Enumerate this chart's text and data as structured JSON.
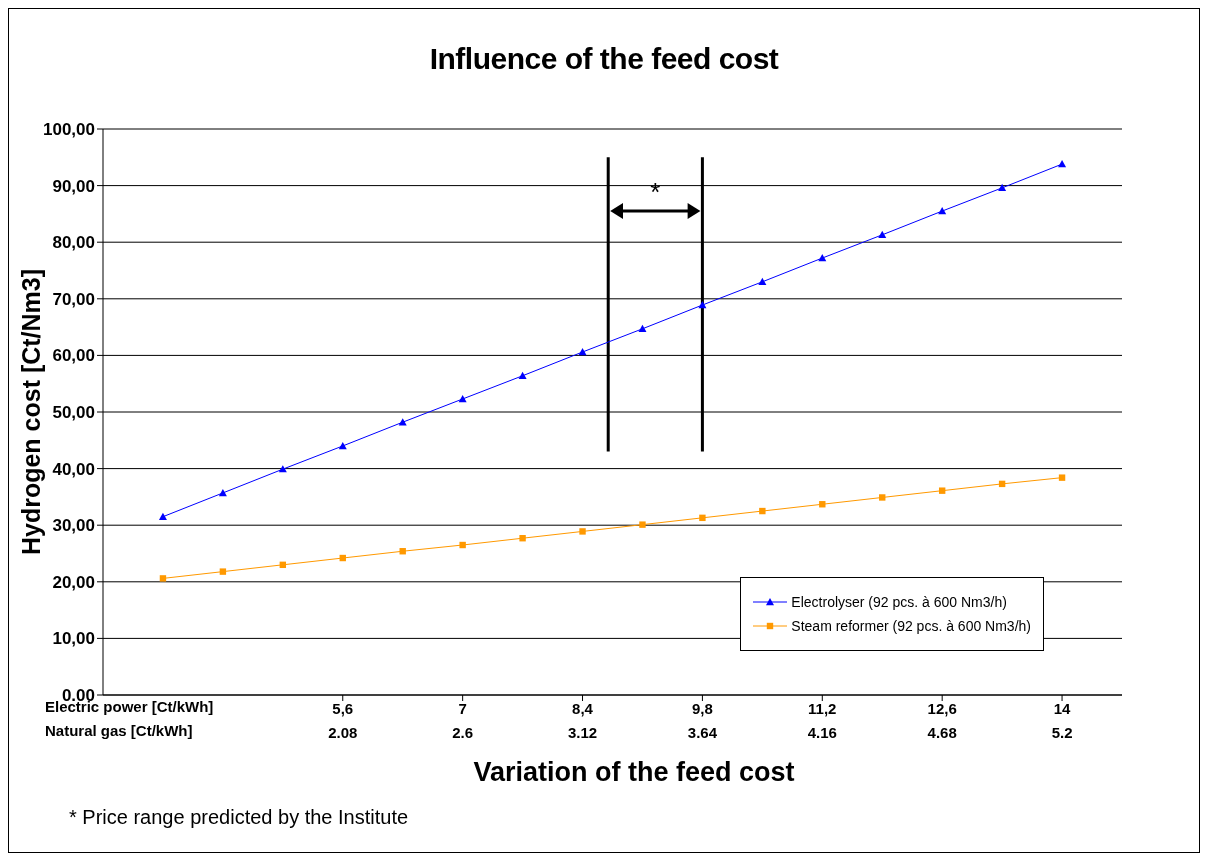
{
  "chart_data": {
    "type": "line",
    "title": "Influence of the feed cost",
    "ylabel": "Hydrogen cost [Ct/Nm3]",
    "xlabel": "Electric power [Ct/kWh]",
    "x2label": "Natural gas [Ct/kWh]",
    "x": [
      3.5,
      4.2,
      4.9,
      5.6,
      6.3,
      7,
      7.7,
      8.4,
      9.1,
      9.8,
      10.5,
      11.2,
      11.9,
      12.6,
      13.3,
      14
    ],
    "series": [
      {
        "name": "Electrolyser (92 pcs. à 600 Nm3/h)",
        "color": "#0000ff",
        "marker": "triangle",
        "values": [
          31.5,
          35.7,
          39.9,
          44.0,
          48.2,
          52.3,
          56.4,
          60.6,
          64.7,
          68.9,
          73.0,
          77.2,
          81.3,
          85.5,
          89.6,
          93.8
        ]
      },
      {
        "name": "Steam reformer (92 pcs. à 600 Nm3/h)",
        "color": "#ff9900",
        "marker": "square",
        "values": [
          20.6,
          21.8,
          23.0,
          24.2,
          25.4,
          26.5,
          27.7,
          28.9,
          30.1,
          31.3,
          32.5,
          33.7,
          34.9,
          36.1,
          37.3,
          38.4
        ]
      }
    ],
    "xlim": [
      2.8,
      14.7
    ],
    "xticks": [
      {
        "value": 5.6,
        "label": "5,6"
      },
      7,
      {
        "value": 8.4,
        "label": "8,4"
      },
      {
        "value": 9.8,
        "label": "9,8"
      },
      {
        "value": 11.2,
        "label": "11,2"
      },
      {
        "value": 12.6,
        "label": "12,6"
      },
      14
    ],
    "x2lim": [
      1.04,
      5.46
    ],
    "x2ticks": [
      2.08,
      2.6,
      3.12,
      3.64,
      4.16,
      4.68,
      5.2
    ],
    "ylim": [
      0,
      100
    ],
    "yticks": [
      {
        "value": 0,
        "label": "0.00"
      },
      {
        "value": 10,
        "label": "10,00"
      },
      {
        "value": 20,
        "label": "20,00"
      },
      {
        "value": 30,
        "label": "30,00"
      },
      {
        "value": 40,
        "label": "40,00"
      },
      {
        "value": 50,
        "label": "50,00"
      },
      {
        "value": 60,
        "label": "60,00"
      },
      {
        "value": 70,
        "label": "70,00"
      },
      {
        "value": 80,
        "label": "80,00"
      },
      {
        "value": 90,
        "label": "90,00"
      },
      {
        "value": 100,
        "label": "100,00"
      }
    ],
    "grid": "y",
    "legend": "bottom right",
    "line_style": "solid",
    "ref_lines": [
      {
        "axis": "x",
        "value": 8.7,
        "color": "#000000"
      },
      {
        "axis": "x",
        "value": 9.8,
        "color": "#000000"
      }
    ],
    "annotations": [
      "*",
      "Variation of the feed cost",
      "* Price range predicted by the Institute"
    ]
  }
}
